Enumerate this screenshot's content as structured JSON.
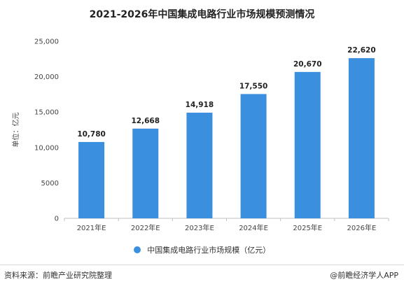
{
  "chart_data": {
    "type": "bar",
    "title": "2021-2026年中国集成电路行业市场规模预测情况",
    "ylabel": "单位：亿元",
    "xlabel": "",
    "categories": [
      "2021年E",
      "2022年E",
      "2023年E",
      "2024年E",
      "2025年E",
      "2026年E"
    ],
    "values": [
      10780,
      12668,
      14918,
      17550,
      20670,
      22620
    ],
    "value_labels": [
      "10,780",
      "12,668",
      "14,918",
      "17,550",
      "20,670",
      "22,620"
    ],
    "series": [
      {
        "name": "中国集成电路行业市场规模（亿元）",
        "values": [
          10780,
          12668,
          14918,
          17550,
          20670,
          22620
        ],
        "color": "#3b8fdf"
      }
    ],
    "ylim": [
      0,
      25000
    ],
    "yticks": [
      0,
      5000,
      10000,
      15000,
      20000,
      25000
    ],
    "ytick_labels": [
      "0",
      "5000",
      "10,000",
      "15,000",
      "20,000",
      "25,000"
    ],
    "grid": false,
    "legend": "bottom-center",
    "bar_color": "#3b8fdf"
  },
  "footer": {
    "source": "资料来源：前瞻产业研究院整理",
    "brand": "@前瞻经济学人APP"
  }
}
